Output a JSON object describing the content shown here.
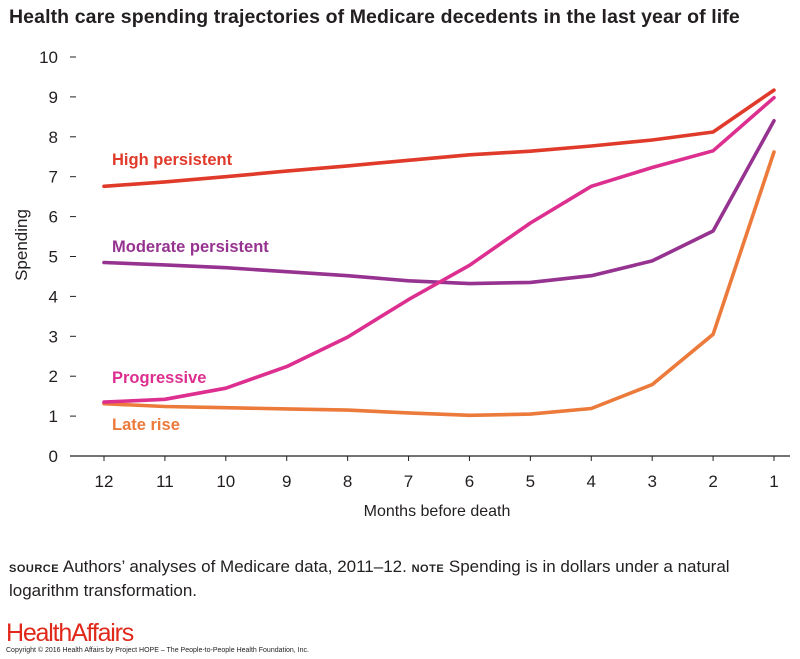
{
  "title": "Health care spending trajectories of Medicare decedents in the last year of life",
  "source": {
    "source_kw": "source",
    "source_text": "Authors’ analyses of Medicare data, 2011–12.",
    "note_kw": "note",
    "note_text": "Spending is in dollars under a natural logarithm transformation."
  },
  "logo": "HealthAffairs",
  "copyright": "Copyright © 2016 Health Affairs by Project HOPE – The People-to-People Health Foundation, Inc.",
  "chart_data": {
    "type": "line",
    "title": "Health care spending trajectories of Medicare decedents in the last year of life",
    "xlabel": "Months before death",
    "ylabel": "Spending",
    "x": [
      12,
      11,
      10,
      9,
      8,
      7,
      6,
      5,
      4,
      3,
      2,
      1
    ],
    "xlim": [
      12,
      1
    ],
    "ylim": [
      0,
      10
    ],
    "yticks": [
      0,
      1,
      2,
      3,
      4,
      5,
      6,
      7,
      8,
      9,
      10
    ],
    "grid": false,
    "legend": "inline labels",
    "series": [
      {
        "name": "High persistent",
        "color": "#e03a2b",
        "values": [
          6.76,
          6.87,
          7.0,
          7.14,
          7.27,
          7.41,
          7.55,
          7.64,
          7.77,
          7.92,
          8.12,
          9.17
        ]
      },
      {
        "name": "Moderate persistent",
        "color": "#963390",
        "values": [
          4.85,
          4.79,
          4.72,
          4.62,
          4.52,
          4.39,
          4.32,
          4.35,
          4.52,
          4.89,
          5.64,
          8.4
        ]
      },
      {
        "name": "Progressive",
        "color": "#dc2f8f",
        "values": [
          1.35,
          1.42,
          1.7,
          2.24,
          2.98,
          3.92,
          4.78,
          5.84,
          6.76,
          7.23,
          7.65,
          8.98
        ]
      },
      {
        "name": "Late rise",
        "color": "#ec7a3b",
        "values": [
          1.31,
          1.24,
          1.21,
          1.18,
          1.15,
          1.08,
          1.02,
          1.05,
          1.19,
          1.79,
          3.05,
          7.62
        ]
      }
    ]
  }
}
